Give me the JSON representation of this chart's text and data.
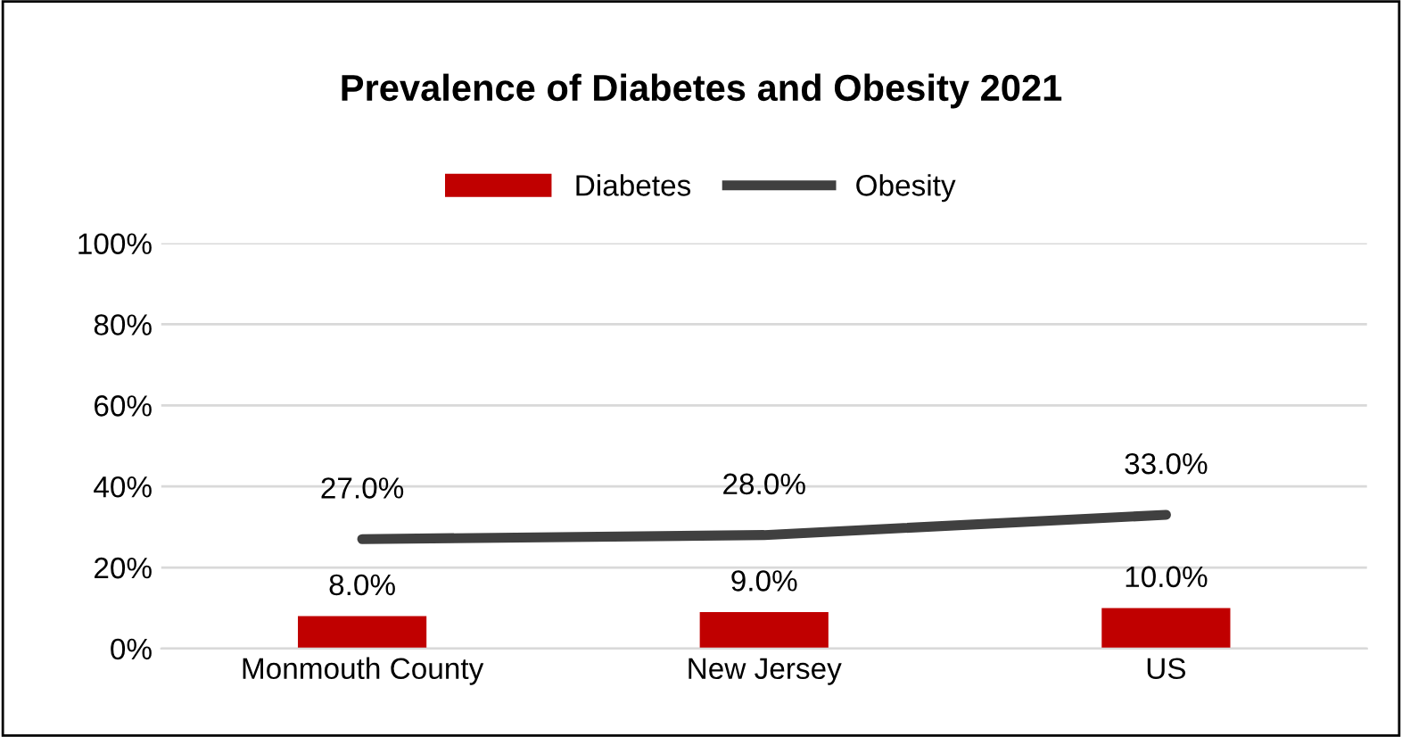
{
  "chart_data": {
    "type": "bar",
    "title": "Prevalence of Diabetes and Obesity 2021",
    "categories": [
      "Monmouth County",
      "New Jersey",
      "US"
    ],
    "series": [
      {
        "name": "Diabetes",
        "color": "#c00000",
        "values": [
          8,
          9,
          10
        ],
        "value_labels": [
          "8.0%",
          "9.0%",
          "10.0%"
        ]
      },
      {
        "name": "Obesity",
        "type": "line",
        "color": "#404040",
        "values": [
          27,
          28,
          33
        ],
        "value_labels": [
          "27.0%",
          "28.0%",
          "33.0%"
        ],
        "marker": "none",
        "line_style": "solid"
      }
    ],
    "ylim": [
      0,
      100
    ],
    "yticks": [
      {
        "value": 0,
        "label": "0%"
      },
      {
        "value": 20,
        "label": "20%"
      },
      {
        "value": 40,
        "label": "40%"
      },
      {
        "value": 60,
        "label": "60%"
      },
      {
        "value": 80,
        "label": "80%"
      },
      {
        "value": 100,
        "label": "100%"
      }
    ],
    "grid": "y",
    "legend": "top"
  }
}
